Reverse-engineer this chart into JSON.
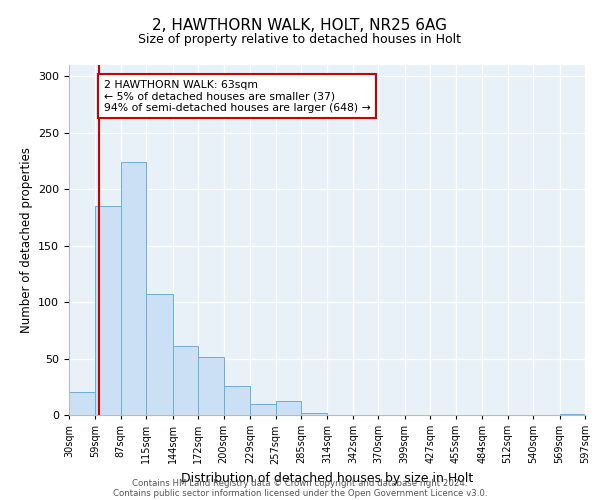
{
  "title": "2, HAWTHORN WALK, HOLT, NR25 6AG",
  "subtitle": "Size of property relative to detached houses in Holt",
  "xlabel": "Distribution of detached houses by size in Holt",
  "ylabel": "Number of detached properties",
  "bar_color": "#cce0f5",
  "bar_edge_color": "#6aaed6",
  "bin_edges": [
    30,
    59,
    87,
    115,
    144,
    172,
    200,
    229,
    257,
    285,
    314,
    342,
    370,
    399,
    427,
    455,
    484,
    512,
    540,
    569,
    597
  ],
  "bin_labels": [
    "30sqm",
    "59sqm",
    "87sqm",
    "115sqm",
    "144sqm",
    "172sqm",
    "200sqm",
    "229sqm",
    "257sqm",
    "285sqm",
    "314sqm",
    "342sqm",
    "370sqm",
    "399sqm",
    "427sqm",
    "455sqm",
    "484sqm",
    "512sqm",
    "540sqm",
    "569sqm",
    "597sqm"
  ],
  "counts": [
    20,
    185,
    224,
    107,
    61,
    51,
    26,
    10,
    12,
    2,
    0,
    0,
    0,
    0,
    0,
    0,
    0,
    0,
    0,
    1
  ],
  "ylim": [
    0,
    310
  ],
  "yticks": [
    0,
    50,
    100,
    150,
    200,
    250,
    300
  ],
  "vline_x": 63,
  "vline_color": "#cc0000",
  "annotation_line1": "2 HAWTHORN WALK: 63sqm",
  "annotation_line2": "← 5% of detached houses are smaller (37)",
  "annotation_line3": "94% of semi-detached houses are larger (648) →",
  "annotation_box_color": "#ffffff",
  "annotation_box_edge": "#cc0000",
  "footer_line1": "Contains HM Land Registry data © Crown copyright and database right 2024.",
  "footer_line2": "Contains public sector information licensed under the Open Government Licence v3.0.",
  "background_color": "#e8f0f8"
}
